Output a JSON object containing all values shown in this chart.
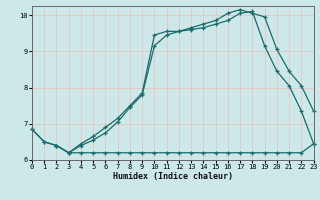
{
  "xlabel": "Humidex (Indice chaleur)",
  "bg_color": "#cce8e8",
  "line_color": "#1a6b6b",
  "grid_color": "#e8c8c8",
  "xlim": [
    0,
    23
  ],
  "ylim": [
    6.0,
    10.25
  ],
  "yticks": [
    6,
    7,
    8,
    9,
    10
  ],
  "xticks": [
    0,
    1,
    2,
    3,
    4,
    5,
    6,
    7,
    8,
    9,
    10,
    11,
    12,
    13,
    14,
    15,
    16,
    17,
    18,
    19,
    20,
    21,
    22,
    23
  ],
  "curve1_x": [
    0,
    1,
    2,
    3,
    4,
    5,
    6,
    7,
    8,
    9,
    10,
    11,
    12,
    13,
    14,
    15,
    16,
    17,
    18,
    19,
    20,
    21,
    22,
    23
  ],
  "curve1_y": [
    6.85,
    6.5,
    6.4,
    6.2,
    6.2,
    6.2,
    6.2,
    6.2,
    6.2,
    6.2,
    6.2,
    6.2,
    6.2,
    6.2,
    6.2,
    6.2,
    6.2,
    6.2,
    6.2,
    6.2,
    6.2,
    6.2,
    6.2,
    6.45
  ],
  "curve2_x": [
    0,
    1,
    2,
    3,
    4,
    5,
    6,
    7,
    8,
    9,
    10,
    11,
    12,
    13,
    14,
    15,
    16,
    17,
    18,
    19,
    20,
    21,
    22,
    23
  ],
  "curve2_y": [
    6.85,
    6.5,
    6.4,
    6.2,
    6.4,
    6.55,
    6.75,
    7.05,
    7.45,
    7.8,
    9.15,
    9.45,
    9.55,
    9.6,
    9.65,
    9.75,
    9.85,
    10.05,
    10.1,
    9.15,
    8.45,
    8.05,
    7.35,
    6.45
  ],
  "curve3_x": [
    2,
    3,
    4,
    5,
    6,
    7,
    8,
    9,
    10,
    11,
    12,
    13,
    14,
    15,
    16,
    17,
    18,
    19,
    20,
    21,
    22,
    23
  ],
  "curve3_y": [
    6.4,
    6.2,
    6.45,
    6.65,
    6.9,
    7.15,
    7.5,
    7.85,
    9.45,
    9.55,
    9.55,
    9.65,
    9.75,
    9.85,
    10.05,
    10.15,
    10.05,
    9.95,
    9.05,
    8.45,
    8.05,
    7.35
  ]
}
